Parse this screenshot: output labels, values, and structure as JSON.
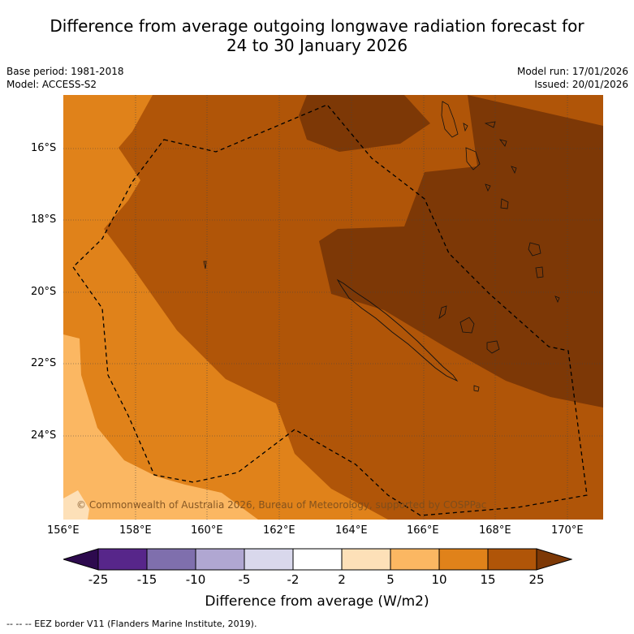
{
  "title": {
    "line1": "Difference from average outgoing longwave radiation forecast for",
    "line2": "24 to 30 January 2026"
  },
  "meta": {
    "base_period": "Base period: 1981-2018",
    "model": "Model: ACCESS-S2",
    "model_run": "Model run: 17/01/2026",
    "issued": "Issued: 20/01/2026"
  },
  "map": {
    "copyright": "© Commonwealth of Australia 2026, Bureau of Meteorology, supported by COSPPac",
    "lon_ticks": [
      "156°E",
      "158°E",
      "160°E",
      "162°E",
      "164°E",
      "166°E",
      "168°E",
      "170°E"
    ],
    "lat_ticks": [
      "16°S",
      "18°S",
      "20°S",
      "22°S",
      "24°S"
    ],
    "region_extent": {
      "lon_min": 156,
      "lon_max": 171,
      "lat_min": -26,
      "lat_max": -14.5
    }
  },
  "colorbar": {
    "labels": [
      "-25",
      "-15",
      "-10",
      "-5",
      "-2",
      "2",
      "5",
      "10",
      "15",
      "25"
    ],
    "colors": {
      "lt_neg25": "#2d0a4e",
      "neg25_neg15": "#57268a",
      "neg15_neg10": "#7f6fad",
      "neg10_neg5": "#b0a7d2",
      "neg5_neg2": "#d9d8ec",
      "neg2_2": "#ffffff",
      "2_5": "#fde0b8",
      "5_10": "#fbb762",
      "10_15": "#e0821a",
      "15_25": "#b05508",
      "gt25": "#7d3806"
    },
    "title": "Difference from average (W/m2)"
  },
  "footer": "--  --  -- EEZ border V11 (Flanders Marine Institute, 2019)."
}
